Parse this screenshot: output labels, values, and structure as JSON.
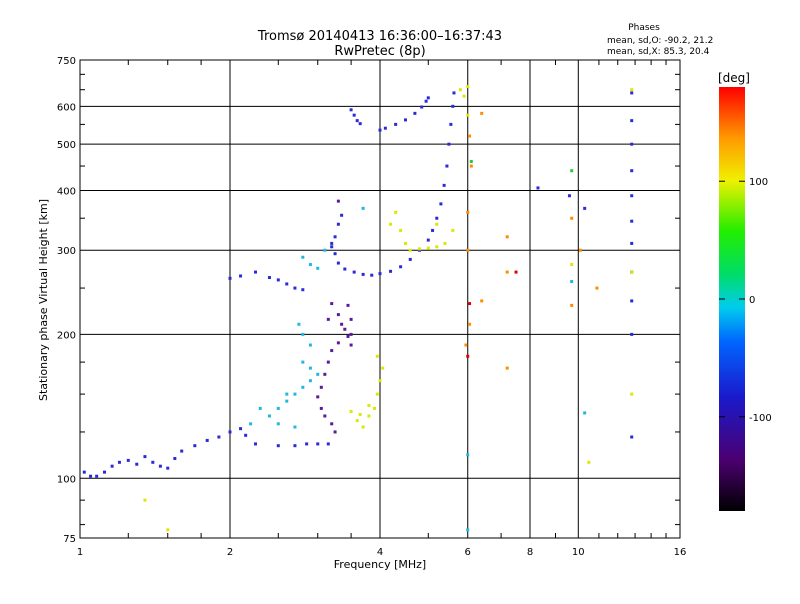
{
  "chart_data": {
    "type": "scatter",
    "title": "Tromsø 20140413 16:36:00–16:37:43",
    "subtitle": "RwPretec (8p)",
    "xlabel": "Frequency [MHz]",
    "ylabel": "Stationary phase Virtual Height [km]",
    "x_scale": "log",
    "y_scale": "log",
    "xlim": [
      1,
      16
    ],
    "ylim": [
      75,
      750
    ],
    "x_ticks": [
      1,
      2,
      4,
      6,
      8,
      10,
      16
    ],
    "y_ticks": [
      75,
      100,
      200,
      300,
      400,
      500,
      600,
      750
    ],
    "grid": true,
    "phase_box": {
      "title": "Phases",
      "line1": "mean, sd,O: -90.2, 21.2",
      "line2": "mean, sd,X:  85.3, 20.4"
    },
    "colorbar": {
      "label": "[deg]",
      "range": [
        -180,
        180
      ],
      "ticks": [
        100,
        0,
        -100
      ],
      "colormap": "rainbow (black→purple→blue→cyan→green→yellow→red)"
    },
    "series": [
      {
        "phase": "blue",
        "points": [
          [
            1.02,
            103
          ],
          [
            1.05,
            101
          ],
          [
            1.08,
            101
          ],
          [
            1.12,
            103
          ],
          [
            1.16,
            106
          ],
          [
            1.2,
            108
          ],
          [
            1.25,
            109
          ],
          [
            1.3,
            107
          ],
          [
            1.35,
            111
          ],
          [
            1.4,
            108
          ],
          [
            1.45,
            106
          ],
          [
            1.5,
            105
          ],
          [
            1.55,
            110
          ],
          [
            1.6,
            114
          ],
          [
            1.7,
            117
          ],
          [
            1.8,
            120
          ],
          [
            1.9,
            122
          ],
          [
            2.0,
            125
          ],
          [
            2.1,
            127
          ],
          [
            2.15,
            123
          ],
          [
            2.25,
            118
          ],
          [
            2.5,
            117
          ],
          [
            2.7,
            117
          ],
          [
            2.85,
            118
          ],
          [
            3.0,
            118
          ],
          [
            3.15,
            118
          ],
          [
            2.4,
            263
          ],
          [
            2.5,
            260
          ],
          [
            2.6,
            255
          ],
          [
            2.7,
            250
          ],
          [
            2.8,
            248
          ],
          [
            2.0,
            262
          ],
          [
            2.1,
            265
          ],
          [
            2.25,
            270
          ],
          [
            3.2,
            305
          ],
          [
            3.25,
            295
          ],
          [
            3.3,
            282
          ],
          [
            3.4,
            274
          ],
          [
            3.55,
            270
          ],
          [
            3.7,
            267
          ],
          [
            3.85,
            266
          ],
          [
            4.0,
            268
          ],
          [
            4.2,
            271
          ],
          [
            4.4,
            277
          ],
          [
            4.6,
            287
          ],
          [
            4.8,
            300
          ],
          [
            5.0,
            315
          ],
          [
            5.1,
            330
          ],
          [
            5.2,
            350
          ],
          [
            5.3,
            375
          ],
          [
            5.38,
            410
          ],
          [
            5.45,
            450
          ],
          [
            5.5,
            500
          ],
          [
            5.55,
            550
          ],
          [
            5.6,
            600
          ],
          [
            5.63,
            640
          ],
          [
            3.35,
            355
          ],
          [
            3.3,
            340
          ],
          [
            3.25,
            320
          ],
          [
            3.2,
            310
          ],
          [
            4.0,
            535
          ],
          [
            4.1,
            540
          ],
          [
            4.3,
            550
          ],
          [
            4.5,
            562
          ],
          [
            4.7,
            580
          ],
          [
            4.85,
            598
          ],
          [
            4.95,
            615
          ],
          [
            5.0,
            625
          ],
          [
            3.5,
            590
          ],
          [
            3.55,
            575
          ],
          [
            3.6,
            560
          ],
          [
            3.65,
            552
          ],
          [
            8.3,
            405
          ],
          [
            9.6,
            390
          ],
          [
            12.8,
            640
          ],
          [
            12.8,
            560
          ],
          [
            12.8,
            500
          ],
          [
            12.8,
            440
          ],
          [
            12.8,
            390
          ],
          [
            12.8,
            345
          ],
          [
            12.8,
            310
          ],
          [
            12.8,
            270
          ],
          [
            12.8,
            235
          ],
          [
            12.8,
            200
          ],
          [
            12.8,
            122
          ],
          [
            10.3,
            367
          ]
        ]
      },
      {
        "phase": "purple",
        "points": [
          [
            3.2,
            232
          ],
          [
            3.3,
            220
          ],
          [
            3.35,
            210
          ],
          [
            3.4,
            205
          ],
          [
            3.45,
            198
          ],
          [
            3.3,
            192
          ],
          [
            3.2,
            185
          ],
          [
            3.15,
            175
          ],
          [
            3.1,
            165
          ],
          [
            3.05,
            155
          ],
          [
            3.0,
            148
          ],
          [
            3.05,
            140
          ],
          [
            3.1,
            135
          ],
          [
            3.2,
            130
          ],
          [
            3.25,
            125
          ],
          [
            3.15,
            215
          ],
          [
            3.45,
            230
          ],
          [
            3.5,
            215
          ],
          [
            3.5,
            200
          ],
          [
            3.3,
            380
          ],
          [
            3.5,
            190
          ]
        ]
      },
      {
        "phase": "cyan",
        "points": [
          [
            2.4,
            135
          ],
          [
            2.5,
            140
          ],
          [
            2.6,
            145
          ],
          [
            2.7,
            150
          ],
          [
            2.8,
            155
          ],
          [
            2.9,
            160
          ],
          [
            3.0,
            165
          ],
          [
            2.9,
            170
          ],
          [
            2.8,
            175
          ],
          [
            2.6,
            150
          ],
          [
            2.5,
            130
          ],
          [
            2.7,
            128
          ],
          [
            2.3,
            140
          ],
          [
            2.2,
            130
          ],
          [
            2.9,
            280
          ],
          [
            3.0,
            275
          ],
          [
            2.8,
            290
          ],
          [
            3.1,
            300
          ],
          [
            2.9,
            190
          ],
          [
            2.8,
            200
          ],
          [
            2.75,
            210
          ],
          [
            3.7,
            367
          ],
          [
            6.0,
            112
          ],
          [
            6.0,
            78
          ],
          [
            9.7,
            258
          ],
          [
            10.3,
            137
          ]
        ]
      },
      {
        "phase": "yellow",
        "points": [
          [
            3.5,
            138
          ],
          [
            3.6,
            132
          ],
          [
            3.7,
            128
          ],
          [
            3.8,
            135
          ],
          [
            3.9,
            140
          ],
          [
            3.95,
            150
          ],
          [
            4.0,
            160
          ],
          [
            4.05,
            170
          ],
          [
            3.95,
            180
          ],
          [
            3.8,
            142
          ],
          [
            3.65,
            136
          ],
          [
            4.3,
            360
          ],
          [
            4.4,
            330
          ],
          [
            4.5,
            310
          ],
          [
            4.6,
            300
          ],
          [
            4.8,
            302
          ],
          [
            5.0,
            303
          ],
          [
            5.2,
            305
          ],
          [
            5.4,
            310
          ],
          [
            5.6,
            330
          ],
          [
            5.2,
            340
          ],
          [
            5.8,
            650
          ],
          [
            6.0,
            660
          ],
          [
            5.9,
            630
          ],
          [
            6.0,
            575
          ],
          [
            4.2,
            340
          ],
          [
            12.8,
            650
          ],
          [
            12.8,
            150
          ],
          [
            9.7,
            280
          ],
          [
            10.5,
            108
          ],
          [
            1.35,
            90
          ],
          [
            1.5,
            78
          ],
          [
            12.8,
            270
          ]
        ]
      },
      {
        "phase": "orange",
        "points": [
          [
            6.05,
            520
          ],
          [
            6.1,
            450
          ],
          [
            6.0,
            360
          ],
          [
            6.0,
            300
          ],
          [
            6.05,
            210
          ],
          [
            5.95,
            190
          ],
          [
            6.4,
            235
          ],
          [
            7.2,
            170
          ],
          [
            7.2,
            270
          ],
          [
            7.2,
            320
          ],
          [
            10.1,
            300
          ],
          [
            10.9,
            250
          ],
          [
            9.7,
            350
          ],
          [
            9.7,
            230
          ],
          [
            6.4,
            580
          ]
        ]
      },
      {
        "phase": "red",
        "points": [
          [
            6.0,
            180
          ],
          [
            6.05,
            232
          ],
          [
            7.5,
            270
          ]
        ]
      },
      {
        "phase": "green",
        "points": [
          [
            6.1,
            460
          ],
          [
            9.7,
            440
          ]
        ]
      }
    ]
  }
}
